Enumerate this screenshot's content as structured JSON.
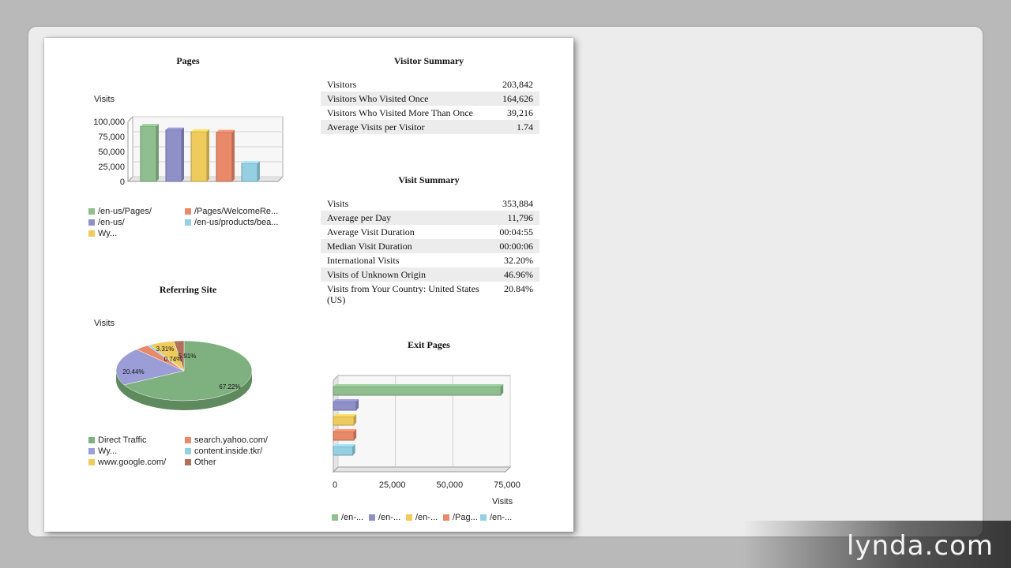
{
  "pages_section": {
    "title": "Pages",
    "chart_data": {
      "type": "bar",
      "ylabel": "Visits",
      "ylim": [
        0,
        100000
      ],
      "yticks": [
        "100,000",
        "75,000",
        "50,000",
        "25,000",
        "0"
      ],
      "categories": [
        "/en-us/Pages/",
        "/en-us/",
        "Wy...",
        "/Pages/WelcomeRe...",
        "/en-us/products/bea..."
      ],
      "values": [
        92000,
        86000,
        83000,
        82000,
        30000
      ],
      "colors": [
        "#8fbf8f",
        "#8f90c8",
        "#eecb5c",
        "#e8896a",
        "#95cfe2"
      ],
      "legend": [
        {
          "label": "/en-us/Pages/",
          "color": "#8fbf8f"
        },
        {
          "label": "/Pages/WelcomeRe...",
          "color": "#e8896a"
        },
        {
          "label": "/en-us/",
          "color": "#8f90c8"
        },
        {
          "label": "/en-us/products/bea...",
          "color": "#95cfe2"
        },
        {
          "label": "Wy...",
          "color": "#eecb5c"
        }
      ]
    }
  },
  "referring_section": {
    "title": "Referring Site",
    "chart_data": {
      "type": "pie",
      "ylabel": "Visits",
      "slices": [
        {
          "label": "Direct Traffic",
          "value": 67.22,
          "text": "67.22%",
          "color": "#7fb07f"
        },
        {
          "label": "Wy...",
          "value": 20.44,
          "text": "20.44%",
          "color": "#9b9ed6"
        },
        {
          "label": "search.yahoo.com/",
          "value": 3.31,
          "text": "3.31%",
          "color": "#e8896a"
        },
        {
          "label": "content.inside.tkr/",
          "value": 0.74,
          "text": "0.74%",
          "color": "#95cfe2"
        },
        {
          "label": "www.google.com/",
          "value": 5.91,
          "text": "5.91%",
          "color": "#eecb5c"
        },
        {
          "label": "Other",
          "value": 2.38,
          "text": "",
          "color": "#b0705a"
        }
      ],
      "legend": [
        {
          "label": "Direct Traffic",
          "color": "#7fb07f"
        },
        {
          "label": "search.yahoo.com/",
          "color": "#e8896a"
        },
        {
          "label": "Wy...",
          "color": "#9b9ed6"
        },
        {
          "label": "content.inside.tkr/",
          "color": "#95cfe2"
        },
        {
          "label": "www.google.com/",
          "color": "#eecb5c"
        },
        {
          "label": "Other",
          "color": "#b0705a"
        }
      ]
    }
  },
  "visitor_summary": {
    "title": "Visitor Summary",
    "rows": [
      {
        "label": "Visitors",
        "value": "203,842"
      },
      {
        "label": "Visitors Who Visited Once",
        "value": "164,626"
      },
      {
        "label": "Visitors Who Visited More Than Once",
        "value": "39,216"
      },
      {
        "label": "Average Visits per Visitor",
        "value": "1.74"
      }
    ]
  },
  "visit_summary": {
    "title": "Visit Summary",
    "rows": [
      {
        "label": "Visits",
        "value": "353,884"
      },
      {
        "label": "Average per Day",
        "value": "11,796"
      },
      {
        "label": "Average Visit Duration",
        "value": "00:04:55"
      },
      {
        "label": "Median Visit Duration",
        "value": "00:00:06"
      },
      {
        "label": "International Visits",
        "value": "32.20%"
      },
      {
        "label": "Visits of Unknown Origin",
        "value": "46.96%"
      },
      {
        "label": "Visits from Your Country: United States (US)",
        "value": "20.84%"
      }
    ]
  },
  "exit_section": {
    "title": "Exit Pages",
    "chart_data": {
      "type": "bar",
      "orientation": "horizontal",
      "xlabel": "Visits",
      "xlim": [
        0,
        75000
      ],
      "xticks": [
        "0",
        "25,000",
        "50,000",
        "75,000"
      ],
      "values": [
        73000,
        10000,
        9000,
        9000,
        8500
      ],
      "colors": [
        "#8fbf8f",
        "#8f90c8",
        "#eecb5c",
        "#e8896a",
        "#95cfe2"
      ],
      "legend": [
        {
          "label": "/en-...",
          "color": "#8fbf8f"
        },
        {
          "label": "/en-...",
          "color": "#8f90c8"
        },
        {
          "label": "/en-...",
          "color": "#eecb5c"
        },
        {
          "label": "/Pag...",
          "color": "#e8896a"
        },
        {
          "label": "/en-...",
          "color": "#95cfe2"
        }
      ]
    }
  },
  "watermark": "lynda.com"
}
